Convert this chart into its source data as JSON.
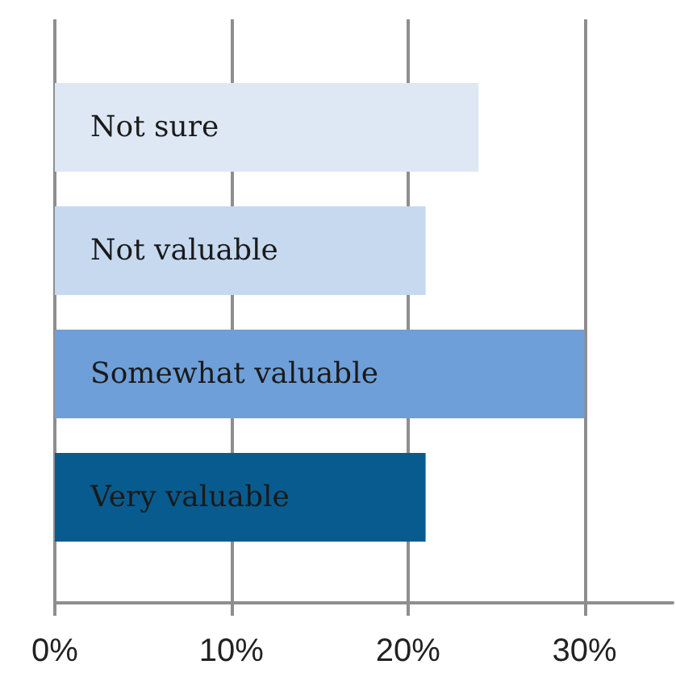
{
  "chart_data": {
    "type": "bar",
    "orientation": "horizontal",
    "categories": [
      "Not sure",
      "Not valuable",
      "Somewhat valuable",
      "Very valuable"
    ],
    "values": [
      24,
      21,
      30,
      21
    ],
    "colors": [
      "#dee8f4",
      "#c6d9ef",
      "#6e9fd8",
      "#085b8e"
    ],
    "xlim": [
      0,
      35
    ],
    "xticks": [
      {
        "value": 0,
        "label": "0%"
      },
      {
        "value": 10,
        "label": "10%"
      },
      {
        "value": 20,
        "label": "20%"
      },
      {
        "value": 30,
        "label": "30%"
      }
    ],
    "grid": "x"
  }
}
